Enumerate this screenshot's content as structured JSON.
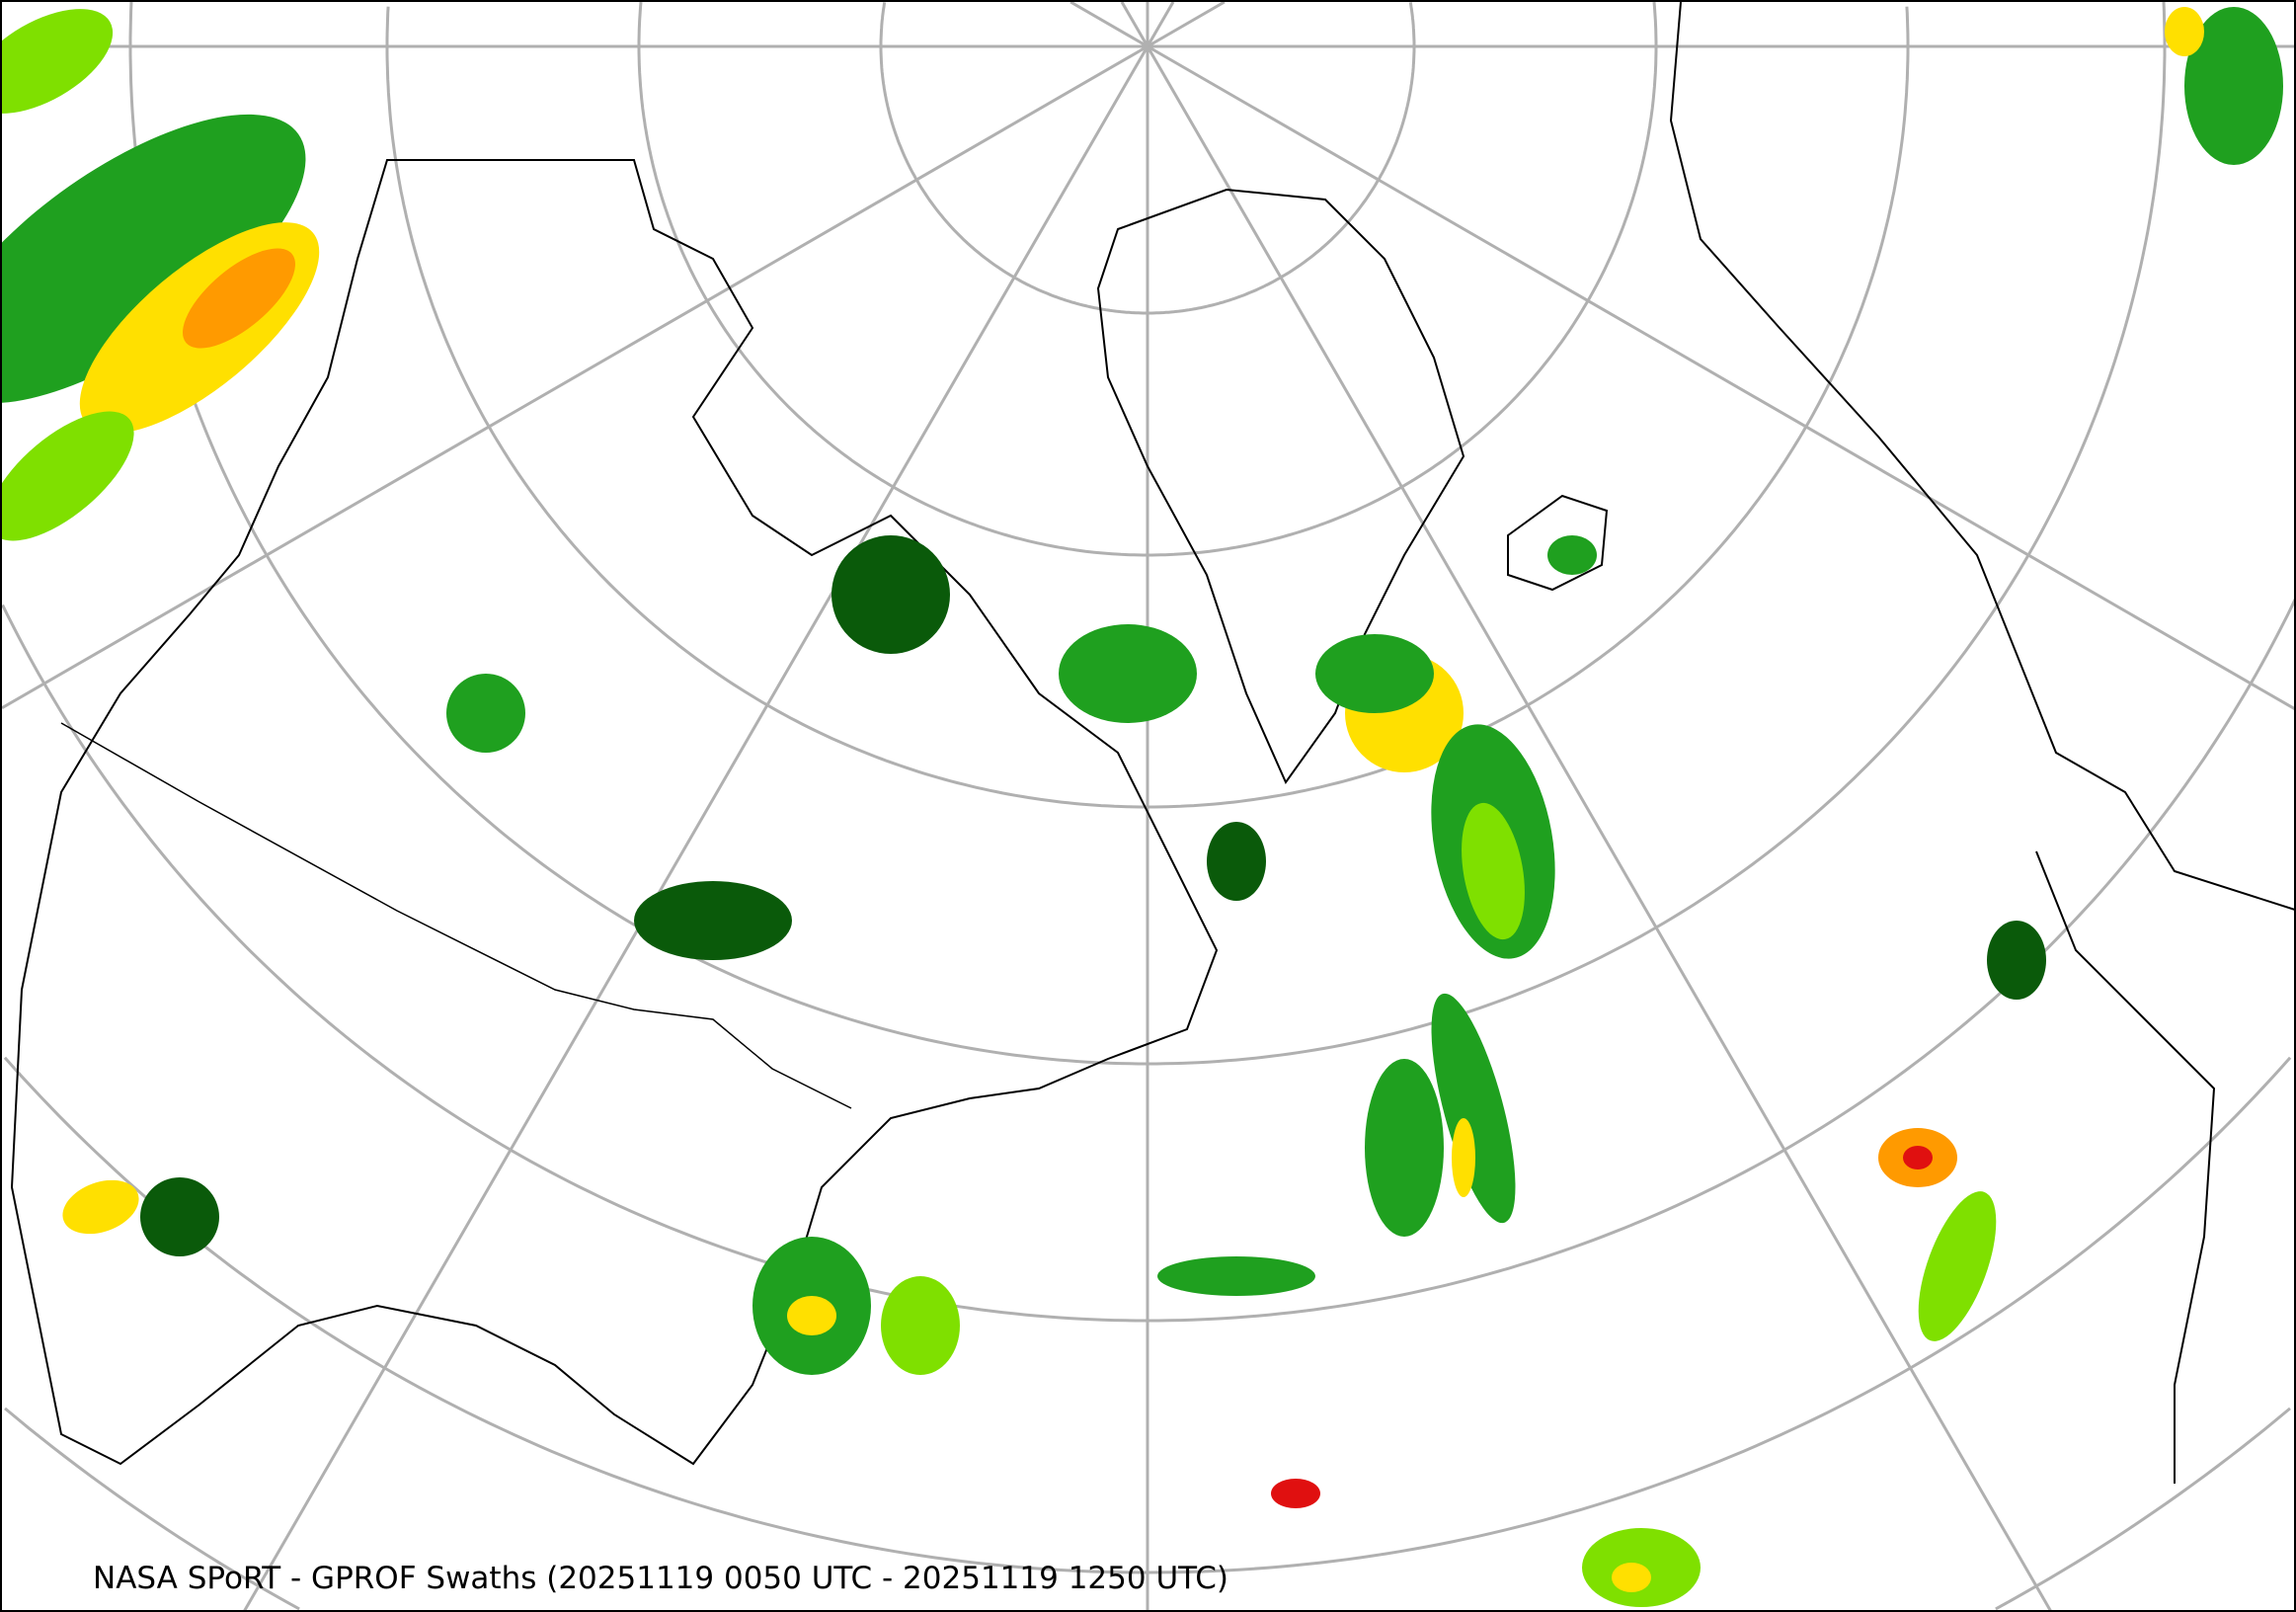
{
  "map": {
    "caption": "NASA SPoRT - GPROF Swaths (20251119 0050 UTC - 20251119 1250 UTC)",
    "projection": "polar stereographic (north pole)",
    "colors": {
      "graticule": "#b0b0b0",
      "boundaries": "#000000",
      "precip_light": "#0a5a0a",
      "precip_low": "#1fa01f",
      "precip_mid": "#7fe000",
      "precip_moderate": "#ffe000",
      "precip_heavy": "#ff9a00",
      "precip_extreme": "#e01010"
    }
  }
}
